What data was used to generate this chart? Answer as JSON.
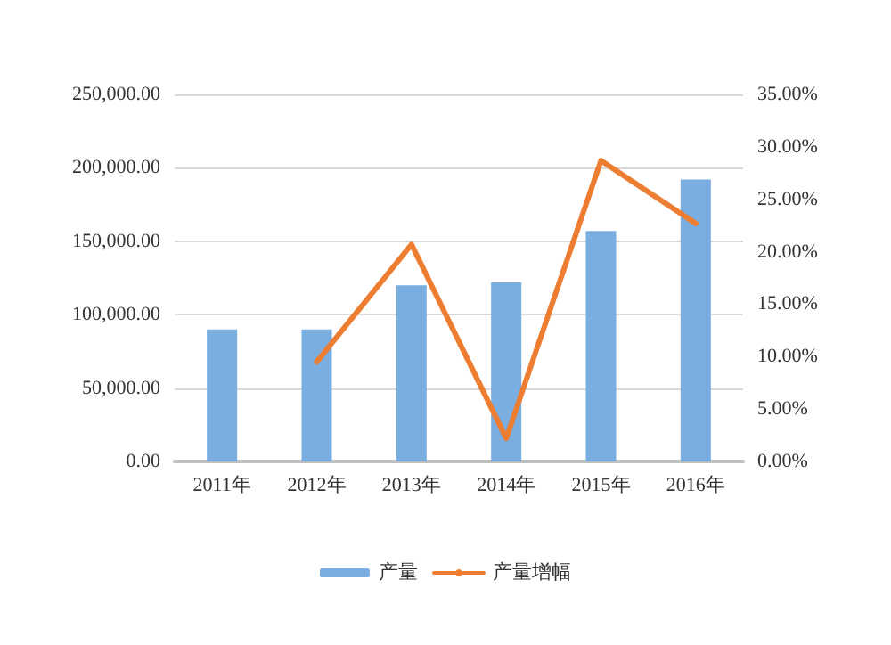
{
  "chart_data": {
    "type": "bar",
    "categories": [
      "2011年",
      "2012年",
      "2013年",
      "2014年",
      "2015年",
      "2016年"
    ],
    "series": [
      {
        "name": "产量",
        "color": "#7aaee0",
        "values": [
          90000,
          90000,
          120000,
          122000,
          157000,
          192000
        ]
      },
      {
        "name": "产量增幅",
        "type": "line",
        "axis": "y2",
        "color": "#ed7d31",
        "values": [
          null,
          9.5,
          20.7,
          2.2,
          28.7,
          22.7
        ]
      }
    ],
    "ylim": [
      0,
      250000
    ],
    "yticks": [
      {
        "value": 0,
        "label": "0.00"
      },
      {
        "value": 50000,
        "label": "50,000.00"
      },
      {
        "value": 100000,
        "label": "100,000.00"
      },
      {
        "value": 150000,
        "label": "150,000.00"
      },
      {
        "value": 200000,
        "label": "200,000.00"
      },
      {
        "value": 250000,
        "label": "250,000.00"
      }
    ],
    "y2lim": [
      0,
      35
    ],
    "y2ticks": [
      {
        "value": 0,
        "label": "0.00%"
      },
      {
        "value": 5,
        "label": "5.00%"
      },
      {
        "value": 10,
        "label": "10.00%"
      },
      {
        "value": 15,
        "label": "15.00%"
      },
      {
        "value": 20,
        "label": "20.00%"
      },
      {
        "value": 25,
        "label": "25.00%"
      },
      {
        "value": 30,
        "label": "30.00%"
      },
      {
        "value": 35,
        "label": "35.00%"
      }
    ],
    "grid": "y",
    "legend": "bottom",
    "marker": "none",
    "line_style": "solid"
  }
}
